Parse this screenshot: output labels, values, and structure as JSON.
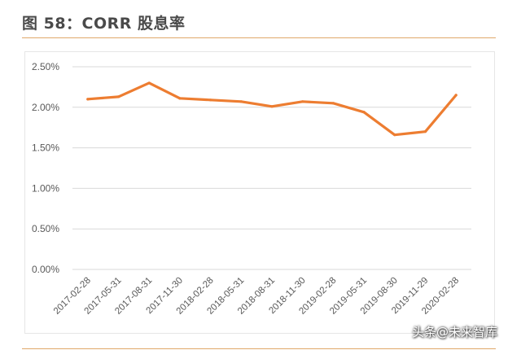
{
  "figure": {
    "title": "图 58：CORR 股息率"
  },
  "watermark": "头条@未来智库",
  "chart_data": {
    "type": "line",
    "title": "",
    "xlabel": "",
    "ylabel": "",
    "categories": [
      "2017-02-28",
      "2017-05-31",
      "2017-08-31",
      "2017-11-30",
      "2018-02-28",
      "2018-05-31",
      "2018-08-31",
      "2018-11-30",
      "2019-02-28",
      "2019-05-31",
      "2019-08-30",
      "2019-11-29",
      "2020-02-28"
    ],
    "series": [
      {
        "name": "",
        "values": [
          2.1,
          2.13,
          2.3,
          2.11,
          2.09,
          2.07,
          2.01,
          2.07,
          2.05,
          1.94,
          1.66,
          1.7,
          2.15
        ]
      }
    ],
    "yticks": [
      0.0,
      0.5,
      1.0,
      1.5,
      2.0,
      2.5
    ],
    "ytick_labels": [
      "0.00%",
      "0.50%",
      "1.00%",
      "1.50%",
      "2.00%",
      "2.50%"
    ],
    "ylim": [
      0,
      2.5
    ],
    "grid": true,
    "legend": "none",
    "line_color": "#ed7d31",
    "grid_color": "#d9d9d9"
  }
}
